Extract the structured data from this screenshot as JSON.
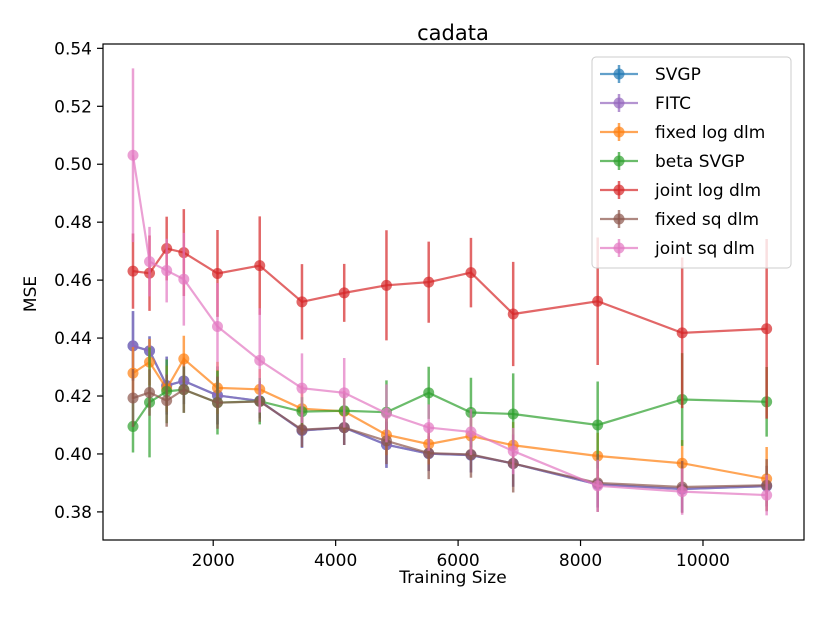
{
  "chart_data": {
    "type": "line",
    "title": "cadata",
    "xlabel": "Training Size",
    "ylabel": "MSE",
    "xlim": [
      200,
      11650
    ],
    "ylim": [
      0.3703,
      0.5415
    ],
    "xticks": [
      2000,
      4000,
      6000,
      8000,
      10000
    ],
    "yticks": [
      0.38,
      0.4,
      0.42,
      0.44,
      0.46,
      0.48,
      0.5,
      0.52,
      0.54
    ],
    "ytick_labels": [
      "0.38",
      "0.40",
      "0.42",
      "0.44",
      "0.46",
      "0.48",
      "0.50",
      "0.52",
      "0.54"
    ],
    "legend_position": "top-right",
    "x": [
      690,
      960,
      1240,
      1520,
      2070,
      2760,
      3450,
      4140,
      4830,
      5520,
      6210,
      6900,
      8280,
      9660,
      11040
    ],
    "series": [
      {
        "name": "SVGP",
        "color": "#1f77b4",
        "values": [
          0.4373,
          0.4356,
          0.4236,
          0.4252,
          0.4202,
          0.4183,
          0.4081,
          0.4091,
          0.4032,
          0.4001,
          0.3996,
          0.3967,
          0.3895,
          0.3879,
          0.3889
        ],
        "errors": [
          0.012,
          0.005,
          0.01,
          0.008,
          0.01,
          0.006,
          0.006,
          0.006,
          0.008,
          0.006,
          0.006,
          0.008,
          0.008,
          0.008,
          0.007
        ]
      },
      {
        "name": "FITC",
        "color": "#9467bd",
        "values": [
          0.4373,
          0.4356,
          0.4236,
          0.4252,
          0.4202,
          0.4183,
          0.4081,
          0.4091,
          0.4032,
          0.4001,
          0.3996,
          0.3967,
          0.3895,
          0.3879,
          0.3889
        ],
        "errors": [
          0.012,
          0.005,
          0.01,
          0.008,
          0.01,
          0.006,
          0.006,
          0.006,
          0.008,
          0.006,
          0.006,
          0.008,
          0.008,
          0.008,
          0.007
        ]
      },
      {
        "name": "fixed log dlm",
        "color": "#ff7f0e",
        "values": [
          0.4279,
          0.4317,
          0.4225,
          0.4328,
          0.4228,
          0.4223,
          0.4156,
          0.4147,
          0.4066,
          0.4034,
          0.4062,
          0.403,
          0.3993,
          0.3968,
          0.3914
        ],
        "errors": [
          0.009,
          0.008,
          0.008,
          0.008,
          0.009,
          0.007,
          0.008,
          0.007,
          0.007,
          0.007,
          0.007,
          0.008,
          0.008,
          0.008,
          0.011
        ]
      },
      {
        "name": "beta SVGP",
        "color": "#2ca02c",
        "values": [
          0.4095,
          0.4178,
          0.4216,
          0.4222,
          0.4177,
          0.4182,
          0.4146,
          0.4149,
          0.4144,
          0.4211,
          0.4143,
          0.4138,
          0.41,
          0.4188,
          0.418
        ],
        "errors": [
          0.009,
          0.019,
          0.011,
          0.008,
          0.011,
          0.008,
          0.005,
          0.006,
          0.011,
          0.009,
          0.012,
          0.014,
          0.015,
          0.016,
          0.012
        ]
      },
      {
        "name": "joint log dlm",
        "color": "#d62728",
        "values": [
          0.4631,
          0.4624,
          0.4709,
          0.4695,
          0.4623,
          0.465,
          0.4525,
          0.4556,
          0.4582,
          0.4593,
          0.4626,
          0.4483,
          0.4527,
          0.4418,
          0.4432
        ],
        "errors": [
          0.013,
          0.013,
          0.011,
          0.015,
          0.015,
          0.017,
          0.013,
          0.01,
          0.019,
          0.014,
          0.012,
          0.018,
          0.022,
          0.026,
          0.031
        ]
      },
      {
        "name": "fixed sq dlm",
        "color": "#8c564b",
        "values": [
          0.4193,
          0.4212,
          0.4184,
          0.4222,
          0.4177,
          0.4181,
          0.4084,
          0.4091,
          0.4045,
          0.4003,
          0.3998,
          0.3967,
          0.39,
          0.3886,
          0.3892
        ],
        "errors": [
          0.01,
          0.008,
          0.009,
          0.008,
          0.009,
          0.007,
          0.006,
          0.006,
          0.008,
          0.009,
          0.008,
          0.01,
          0.01,
          0.009,
          0.009
        ]
      },
      {
        "name": "joint sq dlm",
        "color": "#e377c2",
        "values": [
          0.5031,
          0.4664,
          0.4633,
          0.4603,
          0.444,
          0.4323,
          0.4227,
          0.4211,
          0.414,
          0.4091,
          0.4076,
          0.401,
          0.389,
          0.387,
          0.3858
        ],
        "errors": [
          0.03,
          0.012,
          0.011,
          0.016,
          0.015,
          0.018,
          0.012,
          0.012,
          0.01,
          0.008,
          0.008,
          0.008,
          0.009,
          0.008,
          0.007
        ]
      }
    ]
  }
}
